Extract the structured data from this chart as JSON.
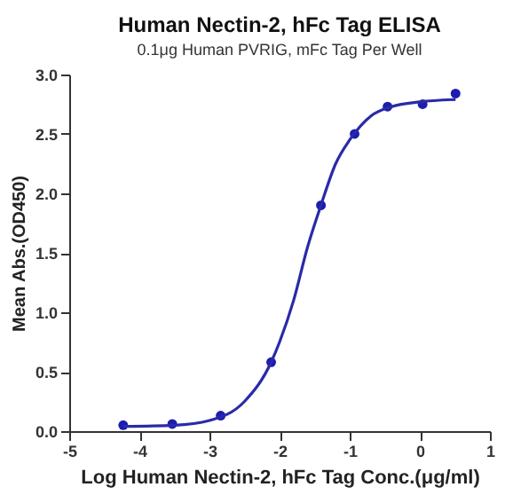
{
  "chart_data": {
    "type": "scatter",
    "title": "Human Nectin-2, hFc Tag ELISA",
    "subtitle": "0.1μg Human PVRIG, mFc Tag Per Well",
    "xlabel": "Log Human Nectin-2, hFc Tag Conc.(μg/ml)",
    "ylabel": "Mean Abs.(OD450)",
    "series": [
      {
        "color": "#1c1cb0",
        "marker": "circle",
        "x": [
          -4.23,
          -3.53,
          -2.84,
          -2.12,
          -1.41,
          -0.93,
          -0.46,
          0.04,
          0.51
        ],
        "values": [
          0.05,
          0.06,
          0.13,
          0.58,
          1.9,
          2.5,
          2.73,
          2.75,
          2.84
        ]
      },
      {
        "type": "line",
        "color": "#2a2aa8",
        "marker": "none",
        "line_style": "solid",
        "x": [
          -4.23,
          -3.5,
          -3.0,
          -2.5,
          -2.12,
          -2.0,
          -1.8,
          -1.6,
          -1.41,
          -1.2,
          -1.0,
          -0.7,
          -0.4,
          0.0,
          0.51
        ],
        "values": [
          0.04,
          0.05,
          0.09,
          0.25,
          0.58,
          0.75,
          1.1,
          1.55,
          1.9,
          2.25,
          2.45,
          2.65,
          2.73,
          2.77,
          2.79
        ]
      }
    ],
    "xlim": [
      -5,
      1
    ],
    "xticks": [
      -5,
      -4,
      -3,
      -2,
      -1,
      0,
      1
    ],
    "ylim": [
      0,
      3
    ],
    "yticks": [
      {
        "value": 0,
        "label": "0.0"
      },
      {
        "value": 0.5,
        "label": "0.5"
      },
      {
        "value": 1,
        "label": "1.0"
      },
      {
        "value": 1.5,
        "label": "1.5"
      },
      {
        "value": 2,
        "label": "2.0"
      },
      {
        "value": 2.5,
        "label": "2.5"
      },
      {
        "value": 3,
        "label": "3.0"
      }
    ],
    "grid": false
  }
}
